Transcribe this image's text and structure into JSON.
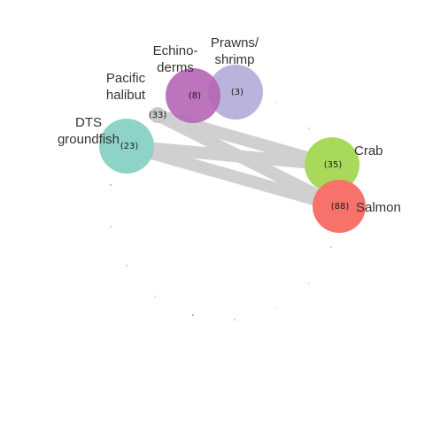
{
  "chart_data": {
    "type": "network",
    "nodes": [
      {
        "id": "dts",
        "label_lines": [
          "DTS",
          "groundfish"
        ],
        "count": 23,
        "count_label": "(23)",
        "color": "#8dd3c7"
      },
      {
        "id": "halibut",
        "label_lines": [
          "Pacific",
          "halibut"
        ],
        "count": 33,
        "count_label": "(33)",
        "color": "#c8c8c8"
      },
      {
        "id": "echinoderms",
        "label_lines": [
          "Echino-",
          "derms"
        ],
        "count": 8,
        "count_label": "(8)",
        "color": "#b565b5"
      },
      {
        "id": "prawns",
        "label_lines": [
          "Prawns/",
          "shrimp"
        ],
        "count": 3,
        "count_label": "(3)",
        "color": "#b1acd8"
      },
      {
        "id": "crab",
        "label_lines": [
          "Crab"
        ],
        "count": 35,
        "count_label": "(35)",
        "color": "#a9d95a"
      },
      {
        "id": "salmon",
        "label_lines": [
          "Salmon"
        ],
        "count": 88,
        "count_label": "(88)",
        "color": "#f7726a"
      }
    ],
    "links": [
      {
        "source": "halibut",
        "target": "crab"
      },
      {
        "source": "halibut",
        "target": "salmon"
      },
      {
        "source": "dts",
        "target": "crab"
      },
      {
        "source": "dts",
        "target": "salmon"
      }
    ],
    "link_color": "#d0d0d0"
  }
}
